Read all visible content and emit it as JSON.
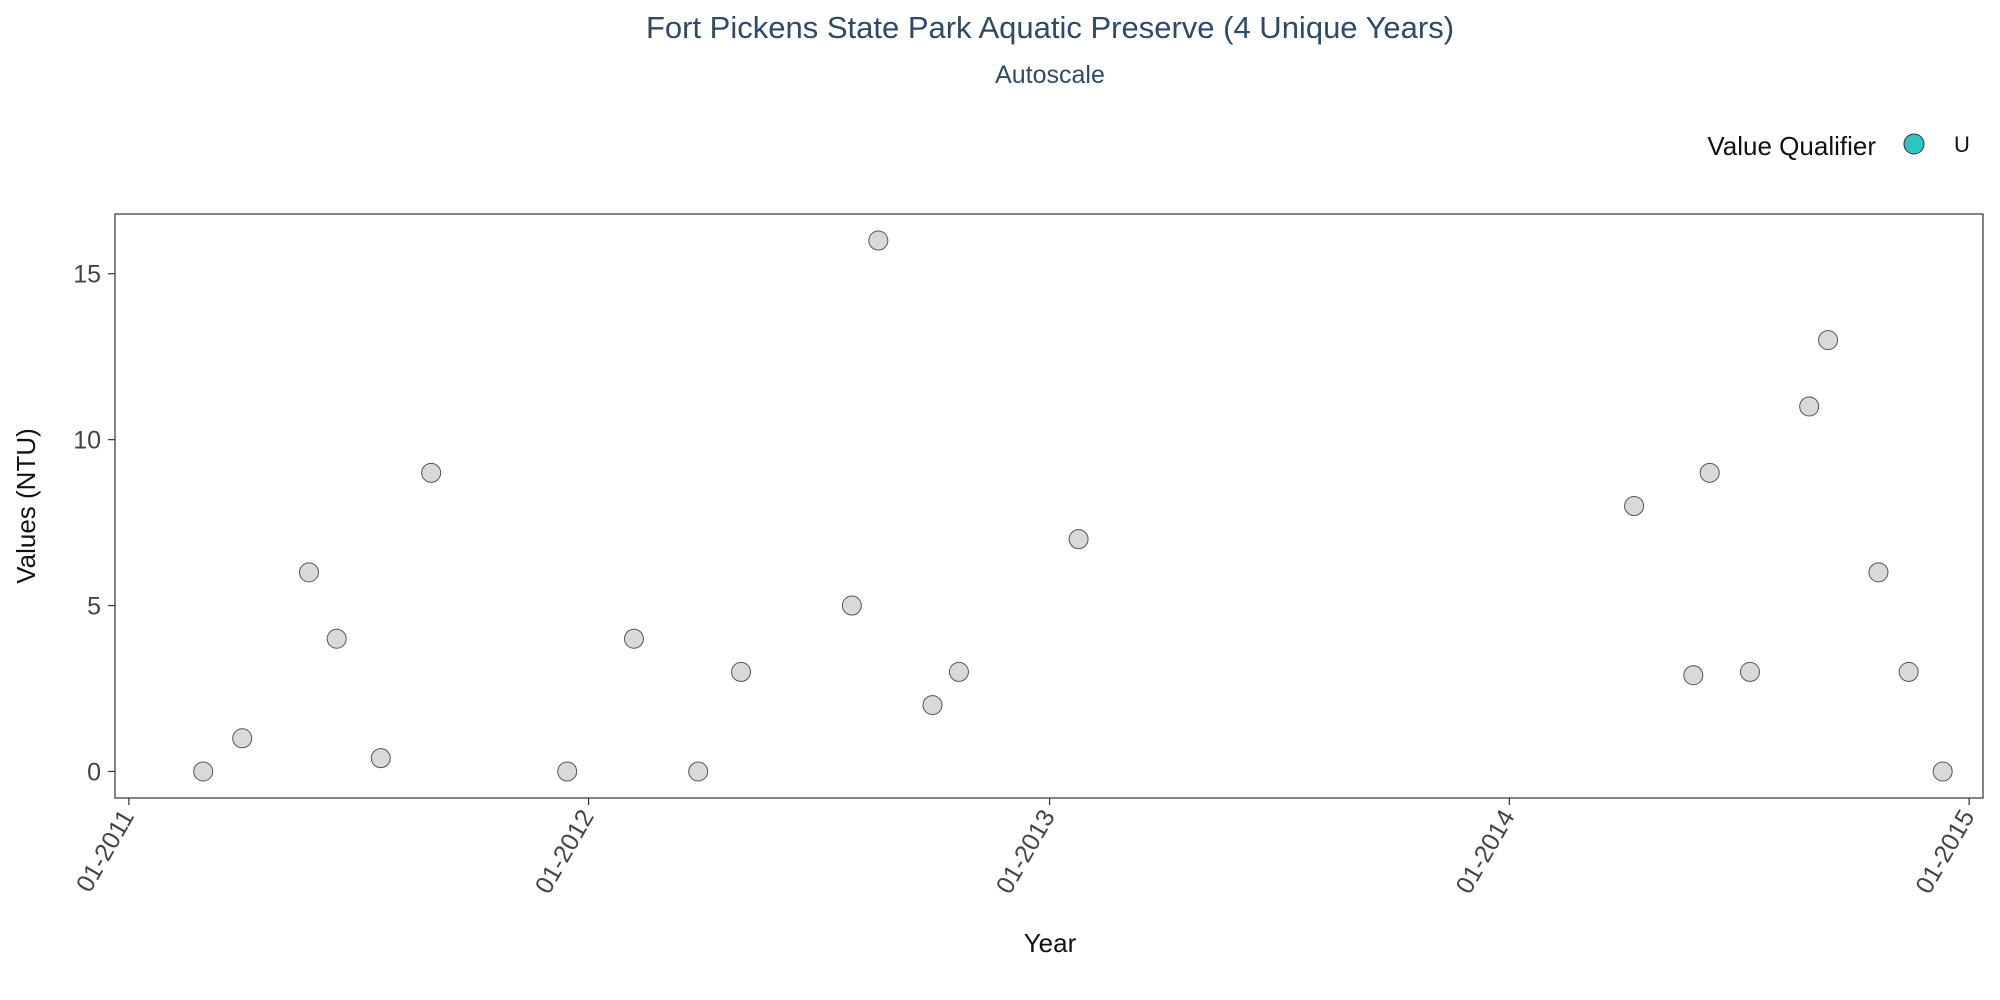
{
  "chart_data": {
    "type": "scatter",
    "title": "Fort Pickens State Park Aquatic Preserve (4 Unique Years)",
    "subtitle": "Autoscale",
    "xlabel": "Year",
    "ylabel": "Values (NTU)",
    "x_ticks": [
      "01-2011",
      "01-2012",
      "01-2013",
      "01-2014",
      "01-2015"
    ],
    "y_ticks": [
      0,
      5,
      10,
      15
    ],
    "xlim": [
      "2010-12-21",
      "2015-01-12"
    ],
    "ylim": [
      -0.8,
      16.8
    ],
    "grid": false,
    "legend": {
      "title": "Value Qualifier",
      "placement": "top-right",
      "entries": [
        {
          "label": "U",
          "color": "#2ec4c4"
        }
      ]
    },
    "point_color": "#d9d9d9",
    "point_stroke": "#555555",
    "series": [
      {
        "points": [
          {
            "x": "2011-03-01",
            "y": 0
          },
          {
            "x": "2011-04-01",
            "y": 1
          },
          {
            "x": "2011-05-24",
            "y": 6
          },
          {
            "x": "2011-06-15",
            "y": 4
          },
          {
            "x": "2011-07-20",
            "y": 0.4
          },
          {
            "x": "2011-08-29",
            "y": 9
          },
          {
            "x": "2011-12-15",
            "y": 0
          },
          {
            "x": "2012-02-06",
            "y": 4
          },
          {
            "x": "2012-03-28",
            "y": 0
          },
          {
            "x": "2012-05-01",
            "y": 3
          },
          {
            "x": "2012-07-28",
            "y": 5
          },
          {
            "x": "2012-08-18",
            "y": 16
          },
          {
            "x": "2012-09-30",
            "y": 2
          },
          {
            "x": "2012-10-21",
            "y": 3
          },
          {
            "x": "2013-01-24",
            "y": 7
          },
          {
            "x": "2014-04-10",
            "y": 8
          },
          {
            "x": "2014-05-27",
            "y": 2.9
          },
          {
            "x": "2014-06-09",
            "y": 9
          },
          {
            "x": "2014-07-11",
            "y": 3
          },
          {
            "x": "2014-08-27",
            "y": 11
          },
          {
            "x": "2014-09-11",
            "y": 13
          },
          {
            "x": "2014-10-21",
            "y": 6
          },
          {
            "x": "2014-11-14",
            "y": 3
          },
          {
            "x": "2014-12-11",
            "y": 0
          }
        ]
      }
    ]
  }
}
